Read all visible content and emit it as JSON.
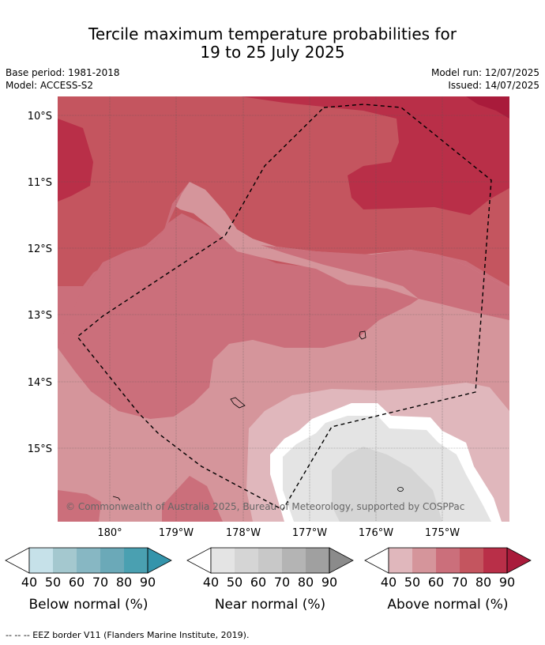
{
  "title_line1": "Tercile maximum temperature probabilities for",
  "title_line2": "19 to 25 July 2025",
  "meta": {
    "base_period": "Base period: 1981-2018",
    "model": "Model: ACCESS-S2",
    "model_run": "Model run: 12/07/2025",
    "issued": "Issued: 14/07/2025"
  },
  "map": {
    "lat_labels": [
      "10°S",
      "11°S",
      "12°S",
      "13°S",
      "14°S",
      "15°S"
    ],
    "lon_labels": [
      "180°",
      "179°W",
      "178°W",
      "177°W",
      "176°W",
      "175°W"
    ],
    "copyright": "© Commonwealth of Australia 2025, Bureau of Meteorology, supported by COSPPac",
    "colors": {
      "above_30_40": "#e8c9cd",
      "above_40_50": "#e0b7bc",
      "above_50_60": "#d5959b",
      "above_60_70": "#cb6f7b",
      "above_70_80": "#c4555f",
      "above_80_90": "#b92f48",
      "above_90": "#a91b3b",
      "near_40_50": "#e4e4e4",
      "near_50_60": "#d5d5d5",
      "below_40_50": "#c6e1e9",
      "land_outline": "#000000",
      "eez_border": "#000000"
    }
  },
  "colorbars": [
    {
      "label": "Below normal (%)",
      "ticks": [
        "40",
        "50",
        "60",
        "70",
        "80",
        "90"
      ],
      "colors": [
        "#ffffff",
        "#c6e1e9",
        "#a4c8cf",
        "#87b7c3",
        "#6ba9b8",
        "#4aa0b1",
        "#3494ab"
      ]
    },
    {
      "label": "Near normal (%)",
      "ticks": [
        "40",
        "50",
        "60",
        "70",
        "80",
        "90"
      ],
      "colors": [
        "#ffffff",
        "#e4e4e4",
        "#d5d5d5",
        "#c8c8c8",
        "#b4b4b4",
        "#a0a0a0",
        "#8b8b8b"
      ]
    },
    {
      "label": "Above normal (%)",
      "ticks": [
        "40",
        "50",
        "60",
        "70",
        "80",
        "90"
      ],
      "colors": [
        "#ffffff",
        "#e0b7bc",
        "#d5959b",
        "#cb6f7b",
        "#c4555f",
        "#b92f48",
        "#a91b3b"
      ]
    }
  ],
  "footnote": "-- -- -- EEZ border V11 (Flanders Marine Institute, 2019)."
}
